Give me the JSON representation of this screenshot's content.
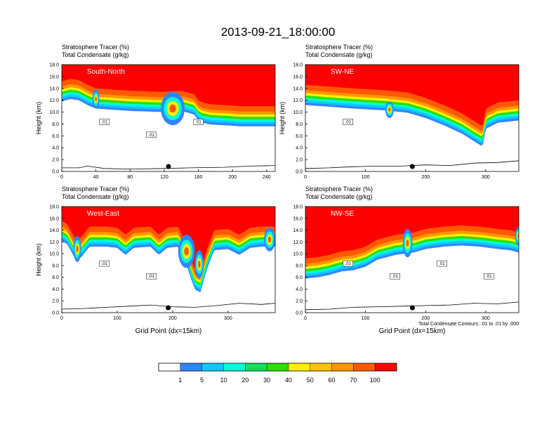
{
  "figure": {
    "title": "2013-09-21_18:00:00",
    "contour_note": "Total Condensate Contours: .01 to .01 by .000"
  },
  "chart_data": {
    "type": "heatmap",
    "panels": [
      {
        "label": "South-North",
        "title_line1": "Stratosphere Tracer   (%)",
        "title_line2": "Total Condensate   (g/kg)",
        "ylabel": "Height (km)",
        "xlabel": "",
        "xlim": [
          0,
          250
        ],
        "ylim": [
          0,
          18
        ],
        "xticks": [
          "0",
          "40",
          "80",
          "120",
          "160",
          "200",
          "240"
        ],
        "yticks": [
          "0.0",
          "2.0",
          "4.0",
          "6.0",
          "8.0",
          "10.0",
          "12.0",
          "14.0",
          "16.0",
          "18.0"
        ],
        "marker_x": 125,
        "contour_labels": [
          ".01",
          ".01",
          ".01"
        ],
        "tropopause": [
          [
            0,
            15.2
          ],
          [
            10,
            15.6
          ],
          [
            20,
            15.4
          ],
          [
            30,
            14.6
          ],
          [
            40,
            14.0
          ],
          [
            60,
            13.8
          ],
          [
            80,
            13.6
          ],
          [
            100,
            13.5
          ],
          [
            120,
            13.4
          ],
          [
            140,
            13.6
          ],
          [
            155,
            13.0
          ],
          [
            160,
            12.0
          ],
          [
            165,
            11.6
          ],
          [
            175,
            11.3
          ],
          [
            190,
            11.2
          ],
          [
            210,
            11.0
          ],
          [
            230,
            11.0
          ],
          [
            250,
            11.0
          ]
        ],
        "blobs": [
          {
            "x": 130,
            "y": 10.6,
            "rx": 14,
            "ry": 2.8
          },
          {
            "x": 40,
            "y": 12.2,
            "rx": 4,
            "ry": 1.6
          }
        ],
        "terrain": [
          [
            0,
            0.6
          ],
          [
            20,
            0.6
          ],
          [
            30,
            0.9
          ],
          [
            50,
            0.5
          ],
          [
            80,
            0.4
          ],
          [
            120,
            0.5
          ],
          [
            150,
            0.6
          ],
          [
            190,
            0.7
          ],
          [
            220,
            0.9
          ],
          [
            250,
            1.0
          ]
        ]
      },
      {
        "label": "SW-NE",
        "title_line1": "Stratosphere Tracer   (%)",
        "title_line2": "Total Condensate   (g/kg)",
        "ylabel": "Height (km)",
        "xlabel": "",
        "xlim": [
          0,
          355
        ],
        "ylim": [
          0,
          18
        ],
        "xticks": [
          "0",
          "100",
          "200",
          "300"
        ],
        "yticks": [
          "0.0",
          "2.0",
          "4.0",
          "6.0",
          "8.0",
          "10.0",
          "12.0",
          "14.0",
          "16.0",
          "18.0"
        ],
        "marker_x": 178,
        "contour_labels": [
          ".01"
        ],
        "tropopause": [
          [
            0,
            14.6
          ],
          [
            40,
            14.3
          ],
          [
            80,
            14.0
          ],
          [
            130,
            13.7
          ],
          [
            170,
            13.3
          ],
          [
            200,
            12.4
          ],
          [
            230,
            11.2
          ],
          [
            260,
            9.8
          ],
          [
            285,
            8.2
          ],
          [
            295,
            7.6
          ],
          [
            300,
            10.6
          ],
          [
            320,
            11.6
          ],
          [
            355,
            12.0
          ]
        ],
        "blobs": [
          {
            "x": 140,
            "y": 10.4,
            "rx": 7,
            "ry": 1.4
          }
        ],
        "terrain": [
          [
            0,
            0.5
          ],
          [
            40,
            0.6
          ],
          [
            80,
            0.8
          ],
          [
            120,
            0.9
          ],
          [
            160,
            0.9
          ],
          [
            200,
            1.1
          ],
          [
            240,
            1.0
          ],
          [
            280,
            1.4
          ],
          [
            320,
            1.5
          ],
          [
            355,
            1.8
          ]
        ]
      },
      {
        "label": "West-East",
        "title_line1": "Stratosphere Tracer   (%)",
        "title_line2": "Total Condensate   (g/kg)",
        "ylabel": "Height (km)",
        "xlabel": "Grid Point (dx=15km)",
        "xlim": [
          0,
          385
        ],
        "ylim": [
          0,
          18
        ],
        "xticks": [
          "0",
          "100",
          "200",
          "300"
        ],
        "yticks": [
          "0.0",
          "2.0",
          "4.0",
          "6.0",
          "8.0",
          "10.0",
          "12.0",
          "14.0",
          "16.0",
          "18.0"
        ],
        "marker_x": 192,
        "contour_labels": [
          ".01",
          ".01"
        ],
        "tropopause": [
          [
            0,
            15.6
          ],
          [
            10,
            15.0
          ],
          [
            25,
            12.4
          ],
          [
            35,
            12.8
          ],
          [
            50,
            14.6
          ],
          [
            80,
            14.6
          ],
          [
            100,
            14.4
          ],
          [
            115,
            13.2
          ],
          [
            130,
            14.4
          ],
          [
            160,
            14.6
          ],
          [
            175,
            13.2
          ],
          [
            190,
            14.4
          ],
          [
            210,
            14.6
          ],
          [
            225,
            11.4
          ],
          [
            240,
            7.4
          ],
          [
            250,
            6.8
          ],
          [
            262,
            10.8
          ],
          [
            275,
            14.0
          ],
          [
            300,
            14.2
          ],
          [
            320,
            13.2
          ],
          [
            340,
            14.4
          ],
          [
            360,
            14.6
          ],
          [
            385,
            14.6
          ]
        ],
        "blobs": [
          {
            "x": 225,
            "y": 10.4,
            "rx": 15,
            "ry": 2.8
          },
          {
            "x": 248,
            "y": 8.2,
            "rx": 8,
            "ry": 2.4
          },
          {
            "x": 28,
            "y": 10.8,
            "rx": 7,
            "ry": 2.2
          },
          {
            "x": 375,
            "y": 12.4,
            "rx": 10,
            "ry": 2.0
          }
        ],
        "terrain": [
          [
            0,
            0.6
          ],
          [
            40,
            0.7
          ],
          [
            80,
            0.9
          ],
          [
            120,
            1.1
          ],
          [
            160,
            1.3
          ],
          [
            200,
            1.0
          ],
          [
            240,
            0.9
          ],
          [
            280,
            1.2
          ],
          [
            320,
            1.6
          ],
          [
            360,
            1.4
          ],
          [
            385,
            1.6
          ]
        ]
      },
      {
        "label": "NW-SE",
        "title_line1": "Stratosphere Tracer   (%)",
        "title_line2": "Total Condensate   (g/kg)",
        "ylabel": "",
        "xlabel": "Grid Point (dx=15km)",
        "xlim": [
          0,
          355
        ],
        "ylim": [
          0,
          18
        ],
        "xticks": [
          "0",
          "100",
          "200",
          "300"
        ],
        "yticks": [
          "0.0",
          "2.0",
          "4.0",
          "6.0",
          "8.0",
          "10.0",
          "12.0",
          "14.0",
          "16.0",
          "18.0"
        ],
        "marker_x": 178,
        "contour_labels": [
          ".01",
          ".01",
          ".01",
          ".01"
        ],
        "tropopause": [
          [
            0,
            9.2
          ],
          [
            20,
            9.4
          ],
          [
            40,
            9.8
          ],
          [
            60,
            10.4
          ],
          [
            80,
            10.6
          ],
          [
            100,
            11.2
          ],
          [
            120,
            12.4
          ],
          [
            150,
            13.2
          ],
          [
            180,
            13.6
          ],
          [
            200,
            14.2
          ],
          [
            230,
            14.6
          ],
          [
            260,
            14.8
          ],
          [
            290,
            14.6
          ],
          [
            320,
            14.2
          ],
          [
            340,
            14.0
          ],
          [
            355,
            13.6
          ]
        ],
        "blobs": [
          {
            "x": 170,
            "y": 11.8,
            "rx": 8,
            "ry": 2.4
          },
          {
            "x": 355,
            "y": 13.0,
            "rx": 6,
            "ry": 1.6
          }
        ],
        "terrain": [
          [
            0,
            0.5
          ],
          [
            40,
            0.6
          ],
          [
            80,
            0.9
          ],
          [
            120,
            1.0
          ],
          [
            160,
            1.1
          ],
          [
            200,
            1.2
          ],
          [
            240,
            1.3
          ],
          [
            280,
            1.6
          ],
          [
            320,
            1.5
          ],
          [
            355,
            1.8
          ]
        ]
      }
    ],
    "colorbar": {
      "boundaries": [
        "1",
        "5",
        "10",
        "20",
        "30",
        "40",
        "50",
        "60",
        "70",
        "100"
      ],
      "colors": [
        "#ffffff",
        "#2f87ff",
        "#10c8ff",
        "#00ffd8",
        "#12e05a",
        "#2ae000",
        "#b2f000",
        "#fff000",
        "#ffc400",
        "#ff9600",
        "#ff5a00",
        "#ff0000"
      ]
    }
  }
}
